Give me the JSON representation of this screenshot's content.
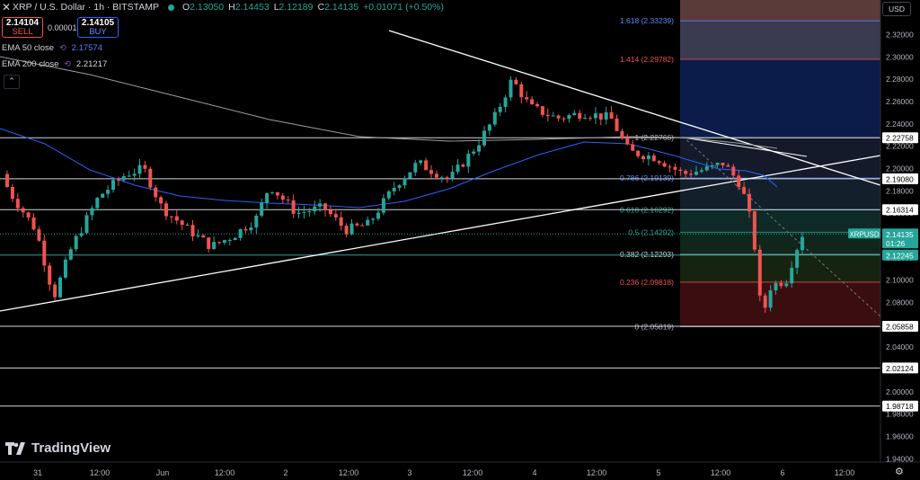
{
  "header": {
    "close_icon": "close-icon",
    "title": "XRP / U.S. Dollar · 1h · BITSTAMP",
    "o_label": "O",
    "o_value": "2.13050",
    "h_label": "H",
    "h_value": "2.14453",
    "l_label": "L",
    "l_value": "2.12189",
    "c_label": "C",
    "c_value": "2.14135",
    "change": "+0.01071 (+0.50%)",
    "status_color": "#26a69a"
  },
  "trade": {
    "sell_price": "2.14104",
    "sell_label": "SELL",
    "spread": "0.00001",
    "buy_price": "2.14105",
    "buy_label": "BUY"
  },
  "indicators": {
    "ema50_label": "EMA 50 close",
    "ema50_value": "2.17574",
    "ema200_label": "EMA 200 close",
    "ema200_value": "2.21217"
  },
  "currency": "USD",
  "branding": "TradingView",
  "chart_data": {
    "type": "candlestick",
    "symbol": "XRPUSD",
    "last_price": "2.14135",
    "countdown": "01:26",
    "ylim": [
      1.94,
      2.34
    ],
    "y_ticks": [
      "2.32000",
      "2.30000",
      "2.28000",
      "2.26000",
      "2.24000",
      "2.22000",
      "2.20000",
      "2.18000",
      "2.16000",
      "2.14000",
      "2.12000",
      "2.10000",
      "2.08000",
      "2.06000",
      "2.04000",
      "2.02000",
      "2.00000",
      "1.98000",
      "1.96000",
      "1.94000"
    ],
    "x_ticks": [
      "31",
      "12:00",
      "Jun",
      "12:00",
      "2",
      "12:00",
      "3",
      "12:00",
      "4",
      "12:00",
      "5",
      "12:00",
      "6",
      "12:00"
    ],
    "horizontal_levels": [
      {
        "value": 2.22758,
        "label": "2.22758"
      },
      {
        "value": 2.1908,
        "label": "2.19080"
      },
      {
        "value": 2.16314,
        "label": "2.16314"
      },
      {
        "value": 2.12245,
        "label": "2.12245",
        "color": "#26a69a"
      },
      {
        "value": 2.05858,
        "label": "2.05858"
      },
      {
        "value": 2.02124,
        "label": "2.02124"
      },
      {
        "value": 1.98718,
        "label": "1.98718"
      }
    ],
    "fibonacci": [
      {
        "ratio": "1.618",
        "value": 2.33239,
        "label": "1.618 (2.33239)",
        "color": "#5b8cff"
      },
      {
        "ratio": "1.414",
        "value": 2.29782,
        "label": "1.414 (2.29782)",
        "color": "#ef5350"
      },
      {
        "ratio": "1",
        "value": 2.22766,
        "label": "1 (2.22766)",
        "color": "#b2b5be"
      },
      {
        "ratio": "0.786",
        "value": 2.19139,
        "label": "0.786 (2.19139)",
        "color": "#5b8cff"
      },
      {
        "ratio": "0.618",
        "value": 2.16292,
        "label": "0.618 (2.16292)",
        "color": "#26a69a"
      },
      {
        "ratio": "0.5",
        "value": 2.14292,
        "label": "0.5 (2.14292)",
        "color": "#26a69a"
      },
      {
        "ratio": "0.382",
        "value": 2.12293,
        "label": "0.382 (2.12293)",
        "color": "#d1d4dc"
      },
      {
        "ratio": "0.236",
        "value": 2.09818,
        "label": "0.236 (2.09818)",
        "color": "#ef5350"
      },
      {
        "ratio": "0",
        "value": 2.05819,
        "label": "0 (2.05819)",
        "color": "#b2b5be"
      }
    ],
    "colors": {
      "up": "#26a69a",
      "down": "#ef5350",
      "ema50": "#2962ff",
      "ema200": "#9e9e9e",
      "grid": "#1e222d"
    }
  }
}
